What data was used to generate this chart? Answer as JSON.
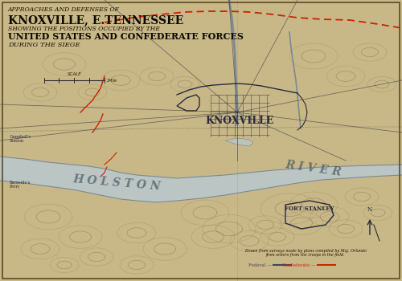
{
  "bg_color": "#c8b887",
  "border_color": "#5a4a2a",
  "title_line1": "APPROACHES AND DEFENSES OF",
  "title_line2": "KNOXVILLE, E.TENNESSEE",
  "title_line3": "SHOWING THE POSITIONS OCCUPIED BY THE",
  "title_line4": "UNITED STATES AND CONFEDERATE FORCES",
  "title_line5": "DURING THE SIEGE",
  "map_ink_color": "#2a2a3a",
  "river_fill_color": "#b8c8d0",
  "river_line_color": "#7a8a95",
  "red_color": "#cc2200",
  "knoxville_label": "KNOXVILLE",
  "holston_label": "H O L S T O N",
  "river_label": "R I V E R",
  "note_text": "Drawn from surveys made by plans compiled by Maj. Orlando\nfrom orders from the troops in the field.",
  "legend_federal_color": "#444455",
  "legend_confed_color": "#cc2200",
  "figsize": [
    5.0,
    3.5
  ],
  "dpi": 100
}
